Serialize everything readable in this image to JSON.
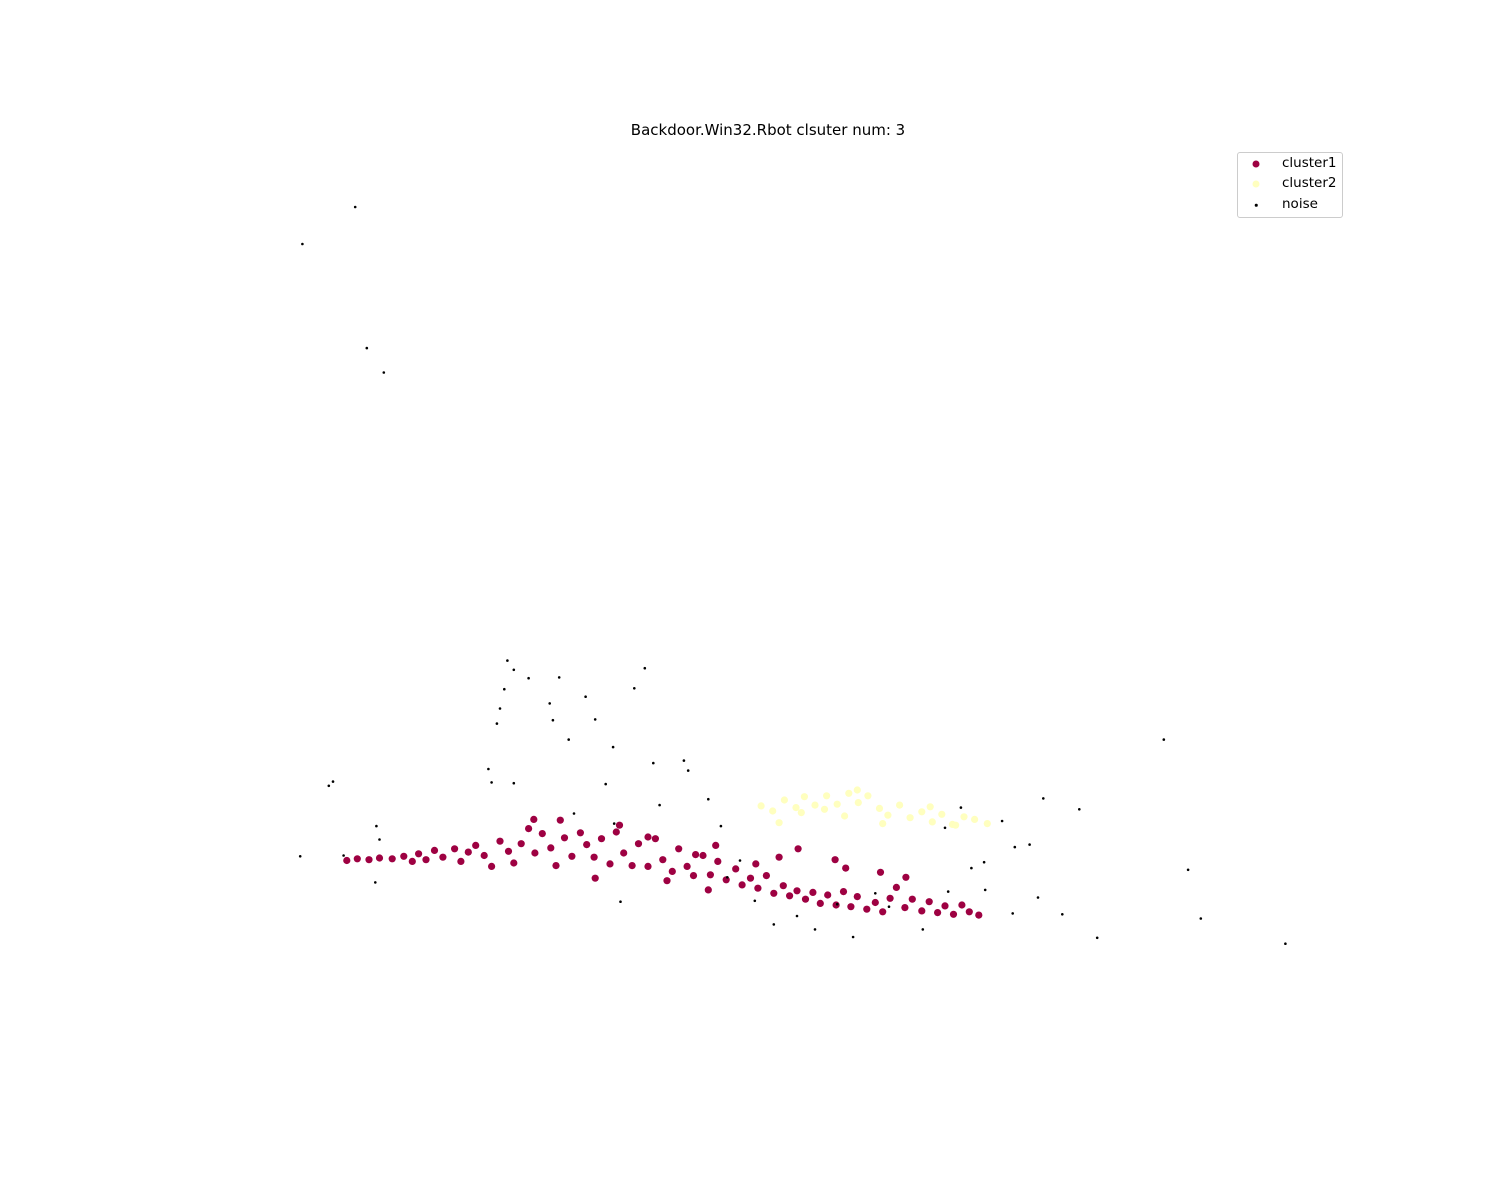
{
  "chart_data": {
    "type": "scatter",
    "title": "Backdoor.Win32.Rbot clsuter num: 3",
    "xlabel": "",
    "ylabel": "",
    "axes_visible": false,
    "xlim": [
      0,
      100
    ],
    "ylim": [
      0,
      100
    ],
    "legend_position": "top-right",
    "series": [
      {
        "name": "cluster1",
        "color": "#9e0142",
        "marker": "large-dot",
        "points": [
          [
            10.1,
            19.7
          ],
          [
            11.1,
            19.9
          ],
          [
            12.2,
            19.8
          ],
          [
            13.2,
            20.0
          ],
          [
            14.4,
            19.9
          ],
          [
            15.5,
            20.2
          ],
          [
            16.3,
            19.6
          ],
          [
            16.9,
            20.5
          ],
          [
            17.6,
            19.8
          ],
          [
            18.4,
            20.9
          ],
          [
            19.2,
            20.1
          ],
          [
            20.3,
            21.1
          ],
          [
            20.9,
            19.6
          ],
          [
            21.6,
            20.7
          ],
          [
            22.3,
            21.5
          ],
          [
            23.1,
            20.3
          ],
          [
            23.8,
            19.0
          ],
          [
            24.6,
            22.0
          ],
          [
            25.4,
            20.8
          ],
          [
            25.9,
            19.4
          ],
          [
            26.6,
            21.7
          ],
          [
            27.3,
            23.5
          ],
          [
            27.9,
            20.6
          ],
          [
            28.6,
            22.9
          ],
          [
            29.4,
            21.2
          ],
          [
            29.9,
            19.1
          ],
          [
            30.7,
            22.4
          ],
          [
            31.4,
            20.2
          ],
          [
            32.2,
            23.0
          ],
          [
            32.8,
            21.6
          ],
          [
            33.5,
            20.1
          ],
          [
            34.2,
            22.3
          ],
          [
            35.0,
            19.3
          ],
          [
            35.6,
            23.1
          ],
          [
            36.3,
            20.6
          ],
          [
            37.1,
            19.1
          ],
          [
            37.7,
            21.7
          ],
          [
            38.6,
            19.0
          ],
          [
            39.3,
            22.3
          ],
          [
            40.0,
            19.8
          ],
          [
            40.9,
            18.4
          ],
          [
            41.5,
            21.1
          ],
          [
            42.3,
            19.0
          ],
          [
            42.9,
            17.9
          ],
          [
            43.8,
            20.3
          ],
          [
            44.5,
            18.0
          ],
          [
            45.2,
            19.6
          ],
          [
            46.0,
            17.4
          ],
          [
            46.9,
            18.7
          ],
          [
            47.5,
            16.8
          ],
          [
            48.3,
            17.6
          ],
          [
            49.0,
            16.4
          ],
          [
            49.8,
            17.9
          ],
          [
            50.5,
            15.8
          ],
          [
            51.4,
            16.7
          ],
          [
            52.0,
            15.5
          ],
          [
            52.7,
            16.1
          ],
          [
            53.5,
            15.1
          ],
          [
            54.2,
            15.9
          ],
          [
            54.9,
            14.6
          ],
          [
            55.6,
            15.6
          ],
          [
            56.4,
            14.4
          ],
          [
            57.1,
            16.0
          ],
          [
            57.8,
            14.2
          ],
          [
            58.4,
            15.4
          ],
          [
            59.3,
            13.9
          ],
          [
            60.1,
            14.7
          ],
          [
            60.8,
            13.6
          ],
          [
            61.5,
            15.2
          ],
          [
            62.1,
            16.5
          ],
          [
            62.9,
            14.1
          ],
          [
            63.6,
            15.1
          ],
          [
            64.5,
            13.7
          ],
          [
            65.2,
            14.8
          ],
          [
            66.0,
            13.5
          ],
          [
            66.7,
            14.3
          ],
          [
            67.5,
            13.3
          ],
          [
            68.3,
            14.4
          ],
          [
            69.0,
            13.6
          ],
          [
            69.9,
            13.2
          ],
          [
            38.6,
            22.5
          ],
          [
            45.0,
            21.5
          ],
          [
            51.0,
            20.1
          ],
          [
            57.3,
            18.8
          ],
          [
            63.0,
            17.7
          ],
          [
            48.8,
            19.3
          ],
          [
            43.1,
            20.4
          ],
          [
            33.6,
            17.6
          ],
          [
            44.3,
            16.2
          ],
          [
            30.3,
            24.5
          ],
          [
            35.9,
            23.9
          ],
          [
            56.3,
            19.8
          ],
          [
            60.6,
            18.3
          ],
          [
            52.8,
            21.1
          ],
          [
            27.8,
            24.6
          ],
          [
            40.4,
            17.3
          ]
        ]
      },
      {
        "name": "cluster2",
        "color": "#ffffbf",
        "marker": "large-dot",
        "points": [
          [
            49.3,
            26.2
          ],
          [
            50.4,
            25.6
          ],
          [
            51.5,
            26.9
          ],
          [
            52.6,
            26.0
          ],
          [
            53.4,
            27.3
          ],
          [
            54.4,
            26.3
          ],
          [
            55.5,
            27.4
          ],
          [
            56.5,
            26.4
          ],
          [
            57.6,
            27.7
          ],
          [
            58.5,
            26.6
          ],
          [
            59.4,
            27.4
          ],
          [
            60.5,
            25.9
          ],
          [
            61.3,
            25.1
          ],
          [
            62.4,
            26.3
          ],
          [
            63.4,
            24.8
          ],
          [
            64.5,
            25.5
          ],
          [
            65.5,
            24.3
          ],
          [
            66.4,
            25.2
          ],
          [
            67.4,
            24.0
          ],
          [
            68.5,
            24.9
          ],
          [
            69.5,
            24.6
          ],
          [
            70.7,
            24.1
          ],
          [
            51.0,
            24.2
          ],
          [
            55.3,
            25.8
          ],
          [
            60.8,
            24.1
          ],
          [
            65.3,
            26.1
          ],
          [
            58.4,
            28.1
          ],
          [
            53.1,
            25.4
          ],
          [
            67.7,
            23.9
          ],
          [
            57.2,
            25.0
          ]
        ]
      },
      {
        "name": "noise",
        "color": "#000000",
        "marker": "small-dot",
        "points": [
          [
            5.7,
            20.2
          ],
          [
            9.8,
            20.3
          ],
          [
            12.9,
            23.8
          ],
          [
            8.4,
            28.6
          ],
          [
            8.8,
            29.1
          ],
          [
            12.8,
            17.1
          ],
          [
            13.2,
            22.2
          ],
          [
            5.9,
            93.1
          ],
          [
            10.9,
            97.5
          ],
          [
            12.0,
            80.7
          ],
          [
            13.6,
            77.8
          ],
          [
            25.3,
            43.5
          ],
          [
            25.9,
            42.4
          ],
          [
            27.3,
            41.4
          ],
          [
            25.0,
            40.1
          ],
          [
            24.6,
            37.8
          ],
          [
            24.3,
            36.0
          ],
          [
            23.5,
            30.6
          ],
          [
            23.8,
            29.0
          ],
          [
            25.9,
            28.9
          ],
          [
            29.3,
            38.4
          ],
          [
            29.6,
            36.4
          ],
          [
            30.2,
            41.5
          ],
          [
            31.1,
            34.1
          ],
          [
            32.7,
            39.2
          ],
          [
            33.6,
            36.5
          ],
          [
            35.3,
            33.2
          ],
          [
            34.6,
            28.8
          ],
          [
            37.3,
            40.2
          ],
          [
            38.3,
            42.6
          ],
          [
            39.1,
            31.3
          ],
          [
            39.7,
            26.3
          ],
          [
            31.6,
            25.3
          ],
          [
            35.4,
            24.1
          ],
          [
            42.0,
            31.6
          ],
          [
            44.3,
            27.0
          ],
          [
            45.5,
            23.8
          ],
          [
            46.1,
            17.7
          ],
          [
            47.3,
            19.7
          ],
          [
            48.7,
            14.9
          ],
          [
            50.5,
            12.1
          ],
          [
            52.7,
            13.1
          ],
          [
            54.4,
            11.5
          ],
          [
            56.5,
            14.5
          ],
          [
            58.0,
            10.6
          ],
          [
            60.1,
            15.8
          ],
          [
            61.4,
            14.2
          ],
          [
            64.6,
            11.5
          ],
          [
            67.0,
            16.0
          ],
          [
            70.5,
            16.2
          ],
          [
            73.1,
            13.4
          ],
          [
            73.3,
            21.3
          ],
          [
            69.2,
            18.8
          ],
          [
            72.1,
            24.4
          ],
          [
            68.2,
            26.0
          ],
          [
            74.7,
            21.6
          ],
          [
            76.0,
            27.1
          ],
          [
            79.4,
            25.8
          ],
          [
            75.5,
            15.3
          ],
          [
            77.8,
            13.3
          ],
          [
            81.1,
            10.5
          ],
          [
            89.7,
            18.6
          ],
          [
            90.9,
            12.8
          ],
          [
            98.9,
            9.8
          ],
          [
            87.4,
            34.1
          ],
          [
            36.0,
            14.8
          ],
          [
            42.4,
            30.4
          ],
          [
            66.7,
            23.6
          ],
          [
            70.4,
            19.5
          ]
        ]
      }
    ]
  }
}
